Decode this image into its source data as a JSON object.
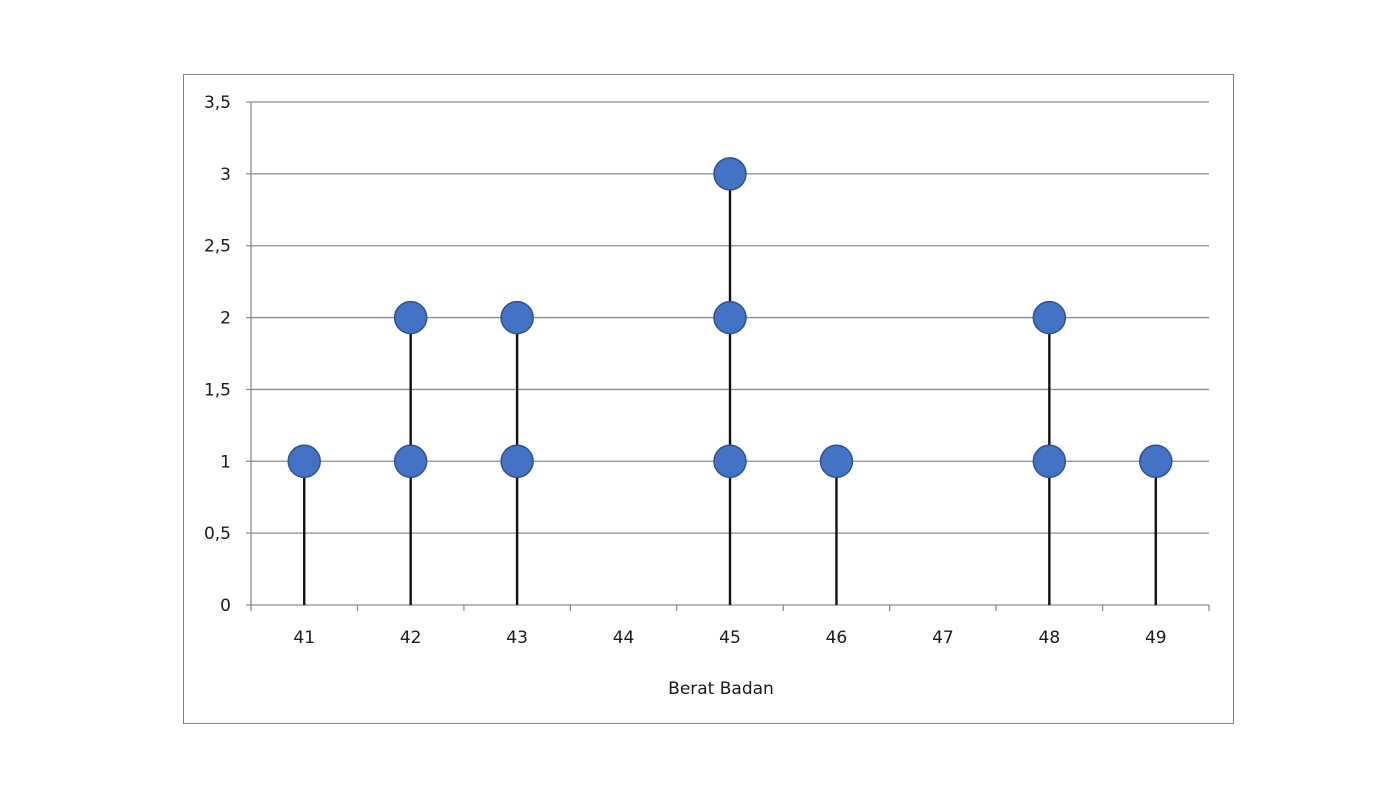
{
  "chart_data": {
    "type": "scatter",
    "title": "",
    "xlabel": "Berat Badan",
    "ylabel": "",
    "categories": [
      "41",
      "42",
      "43",
      "44",
      "45",
      "46",
      "47",
      "48",
      "49"
    ],
    "yticks": [
      "0",
      "0,5",
      "1",
      "1,5",
      "2",
      "2,5",
      "3",
      "3,5"
    ],
    "ylim": [
      0,
      3.5
    ],
    "grid": true,
    "point_color": "#4472c4",
    "point_edge_color": "#2f528f",
    "points": [
      {
        "x": "41",
        "y": 1
      },
      {
        "x": "42",
        "y": 1
      },
      {
        "x": "42",
        "y": 2
      },
      {
        "x": "43",
        "y": 1
      },
      {
        "x": "43",
        "y": 2
      },
      {
        "x": "45",
        "y": 1
      },
      {
        "x": "45",
        "y": 2
      },
      {
        "x": "45",
        "y": 3
      },
      {
        "x": "46",
        "y": 1
      },
      {
        "x": "48",
        "y": 1
      },
      {
        "x": "48",
        "y": 2
      },
      {
        "x": "49",
        "y": 1
      }
    ],
    "stems": [
      {
        "x": "41",
        "top": 1
      },
      {
        "x": "42",
        "top": 2
      },
      {
        "x": "43",
        "top": 2
      },
      {
        "x": "45",
        "top": 3
      },
      {
        "x": "46",
        "top": 1
      },
      {
        "x": "48",
        "top": 2
      },
      {
        "x": "49",
        "top": 1
      }
    ]
  }
}
